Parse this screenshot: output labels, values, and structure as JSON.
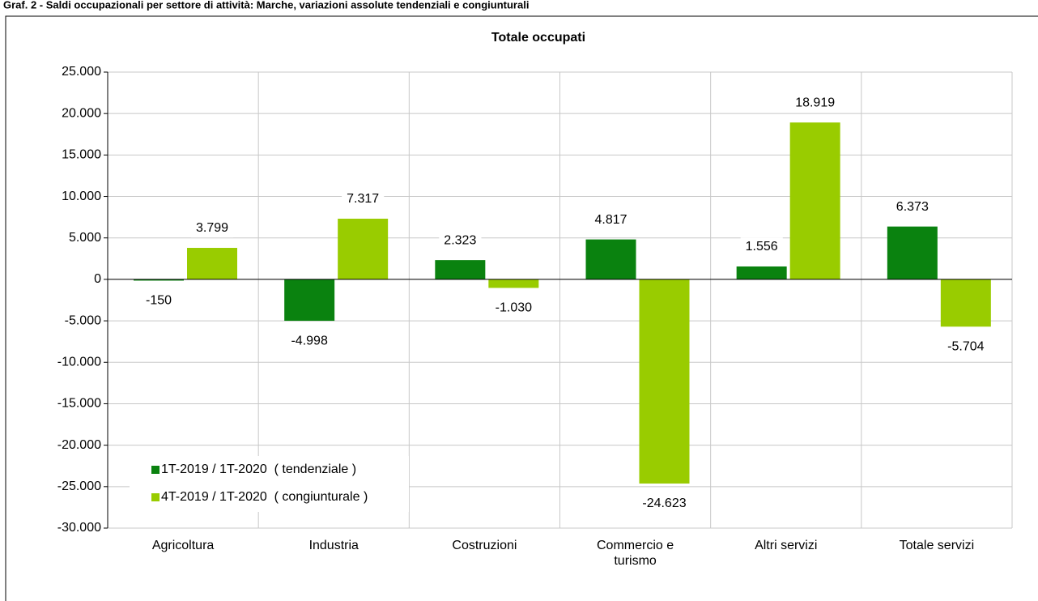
{
  "page_title": "Graf. 2 - Saldi occupazionali per settore di attività: Marche, variazioni assolute tendenziali e congiunturali",
  "chart_data": {
    "type": "bar",
    "title": "Totale occupati",
    "categories": [
      "Agricoltura",
      "Industria",
      "Costruzioni",
      "Commercio e turismo",
      "Altri servizi",
      "Totale servizi"
    ],
    "series": [
      {
        "name": "1T-2019 / 1T-2020  ( tendenziale )",
        "color": "#0a820f",
        "values": [
          -150,
          -4998,
          2323,
          4817,
          1556,
          6373
        ],
        "value_labels": [
          "-150",
          "-4.998",
          "2.323",
          "4.817",
          "1.556",
          "6.373"
        ]
      },
      {
        "name": "4T-2019 / 1T-2020  ( congiunturale )",
        "color": "#99cc00",
        "values": [
          3799,
          7317,
          -1030,
          -24623,
          18919,
          -5704
        ],
        "value_labels": [
          "3.799",
          "7.317",
          "-1.030",
          "-24.623",
          "18.919",
          "-5.704"
        ]
      }
    ],
    "ylim": [
      -30000,
      25000
    ],
    "yticks": [
      {
        "value": -30000,
        "label": "-30.000"
      },
      {
        "value": -25000,
        "label": "-25.000"
      },
      {
        "value": -20000,
        "label": "-20.000"
      },
      {
        "value": -15000,
        "label": "-15.000"
      },
      {
        "value": -10000,
        "label": "-10.000"
      },
      {
        "value": -5000,
        "label": "-5.000"
      },
      0,
      {
        "value": 5000,
        "label": "5.000"
      },
      {
        "value": 10000,
        "label": "10.000"
      },
      {
        "value": 15000,
        "label": "15.000"
      },
      {
        "value": 20000,
        "label": "20.000"
      },
      {
        "value": 25000,
        "label": "25.000"
      }
    ],
    "grid": true,
    "legend": "lower left"
  }
}
